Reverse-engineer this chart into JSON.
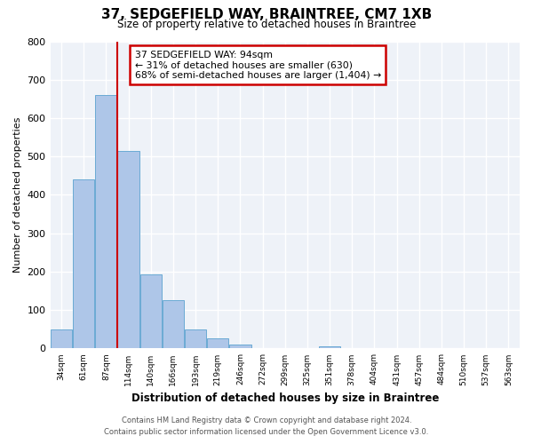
{
  "title": "37, SEDGEFIELD WAY, BRAINTREE, CM7 1XB",
  "subtitle": "Size of property relative to detached houses in Braintree",
  "xlabel": "Distribution of detached houses by size in Braintree",
  "ylabel": "Number of detached properties",
  "bin_labels": [
    "34sqm",
    "61sqm",
    "87sqm",
    "114sqm",
    "140sqm",
    "166sqm",
    "193sqm",
    "219sqm",
    "246sqm",
    "272sqm",
    "299sqm",
    "325sqm",
    "351sqm",
    "378sqm",
    "404sqm",
    "431sqm",
    "457sqm",
    "484sqm",
    "510sqm",
    "537sqm",
    "563sqm"
  ],
  "bar_heights": [
    50,
    440,
    660,
    515,
    193,
    127,
    49,
    26,
    10,
    0,
    0,
    0,
    5,
    0,
    0,
    0,
    0,
    0,
    0,
    0,
    0
  ],
  "bar_color": "#aec6e8",
  "bar_edge_color": "#6aaad4",
  "vline_bar_index": 2,
  "vline_color": "#cc0000",
  "annotation_box_text": "37 SEDGEFIELD WAY: 94sqm\n← 31% of detached houses are smaller (630)\n68% of semi-detached houses are larger (1,404) →",
  "box_edge_color": "#cc0000",
  "ylim": [
    0,
    800
  ],
  "yticks": [
    0,
    100,
    200,
    300,
    400,
    500,
    600,
    700,
    800
  ],
  "background_color": "#eef2f8",
  "grid_color": "#ffffff",
  "footer_line1": "Contains HM Land Registry data © Crown copyright and database right 2024.",
  "footer_line2": "Contains public sector information licensed under the Open Government Licence v3.0."
}
